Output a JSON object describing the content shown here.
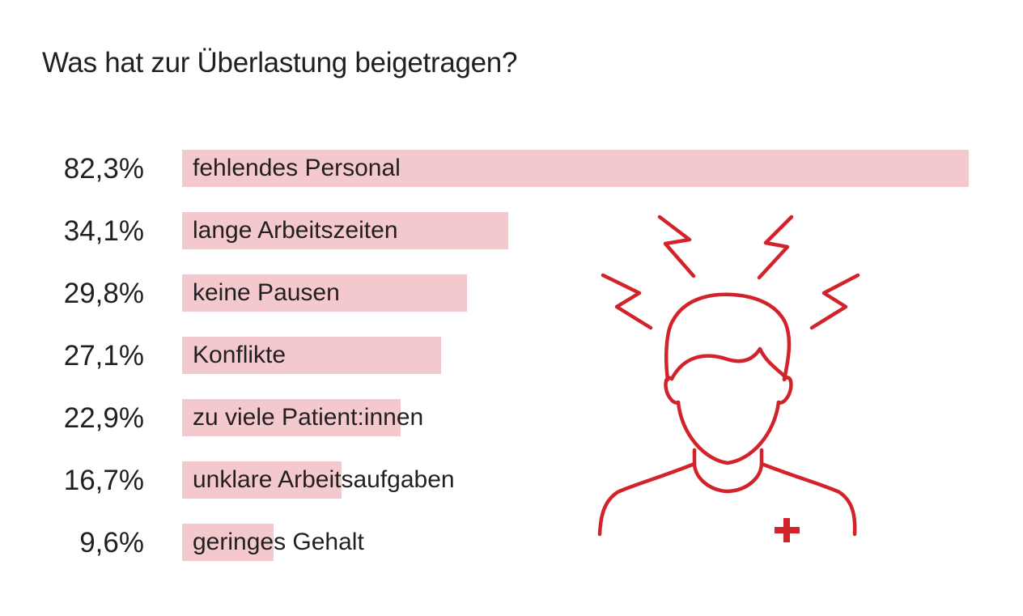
{
  "chart_data": {
    "type": "bar",
    "orientation": "horizontal",
    "title": "Was hat zur Überlastung beigetragen?",
    "value_unit": "%",
    "categories": [
      "fehlendes Personal",
      "lange Arbeitszeiten",
      "keine Pausen",
      "Konflikte",
      "zu viele Patient:innen",
      "unklare Arbeitsaufgaben",
      "geringes Gehalt"
    ],
    "values": [
      82.3,
      34.1,
      29.8,
      27.1,
      22.9,
      16.7,
      9.6
    ],
    "value_labels": [
      "82,3%",
      "34,1%",
      "29,8%",
      "27,1%",
      "22,9%",
      "16,7%",
      "9,6%"
    ],
    "xlim": [
      0,
      82.3
    ],
    "grid": false,
    "legend": "none"
  },
  "colors": {
    "bar": "#f4c9cd",
    "text": "#231f20",
    "icon": "#d2232a"
  },
  "illustration": {
    "icon": "stressed-person-with-lightning-icon",
    "badge": "medical-cross-icon"
  }
}
